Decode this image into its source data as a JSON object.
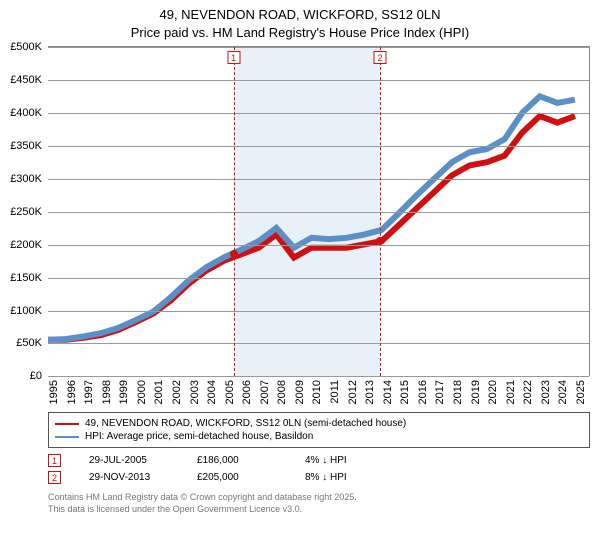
{
  "title_line1": "49, NEVENDON ROAD, WICKFORD, SS12 0LN",
  "title_line2": "Price paid vs. HM Land Registry's House Price Index (HPI)",
  "chart": {
    "type": "line",
    "background_color": "#ffffff",
    "grid_color": "#999999",
    "shade_color": "#e8f0f8",
    "marker_line_color": "#d01010",
    "x_years": [
      1995,
      1996,
      1997,
      1998,
      1999,
      2000,
      2001,
      2002,
      2003,
      2004,
      2005,
      2006,
      2007,
      2008,
      2009,
      2010,
      2011,
      2012,
      2013,
      2014,
      2015,
      2016,
      2017,
      2018,
      2019,
      2020,
      2021,
      2022,
      2023,
      2024,
      2025
    ],
    "xlim": [
      1995,
      2025.8
    ],
    "ylim": [
      0,
      500000
    ],
    "ytick_step": 50000,
    "yticks": [
      "£0",
      "£50K",
      "£100K",
      "£150K",
      "£200K",
      "£250K",
      "£300K",
      "£350K",
      "£400K",
      "£450K",
      "£500K"
    ],
    "series": [
      {
        "name": "49, NEVENDON ROAD, WICKFORD, SS12 0LN (semi-detached house)",
        "color": "#d01010",
        "line_width": 2,
        "values": [
          55,
          55,
          58,
          62,
          70,
          82,
          95,
          115,
          140,
          160,
          175,
          185,
          195,
          215,
          180,
          195,
          195,
          195,
          200,
          205,
          230,
          255,
          280,
          305,
          320,
          325,
          335,
          370,
          395,
          385,
          395
        ]
      },
      {
        "name": "HPI: Average price, semi-detached house, Basildon",
        "color": "#5a8fc8",
        "line_width": 2,
        "values": [
          55,
          56,
          60,
          65,
          73,
          85,
          98,
          120,
          145,
          165,
          180,
          192,
          205,
          225,
          195,
          210,
          208,
          210,
          215,
          222,
          248,
          275,
          300,
          325,
          340,
          345,
          360,
          400,
          425,
          415,
          420
        ]
      }
    ],
    "shade_ranges": [
      {
        "from": 2005.57,
        "to": 2013.91
      }
    ],
    "markers": [
      {
        "id": "1",
        "x": 2005.57,
        "date": "29-JUL-2005",
        "price": "£186,000",
        "delta": "4% ↓ HPI",
        "dot_y": 186
      },
      {
        "id": "2",
        "x": 2013.91,
        "date": "29-NOV-2013",
        "price": "£205,000",
        "delta": "8% ↓ HPI",
        "dot_y": 205
      }
    ],
    "dot_color": "#d01010",
    "title_fontsize": 13,
    "tick_fontsize": 11,
    "legend_fontsize": 10
  },
  "footnote_line1": "Contains HM Land Registry data © Crown copyright and database right 2025.",
  "footnote_line2": "This data is licensed under the Open Government Licence v3.0."
}
